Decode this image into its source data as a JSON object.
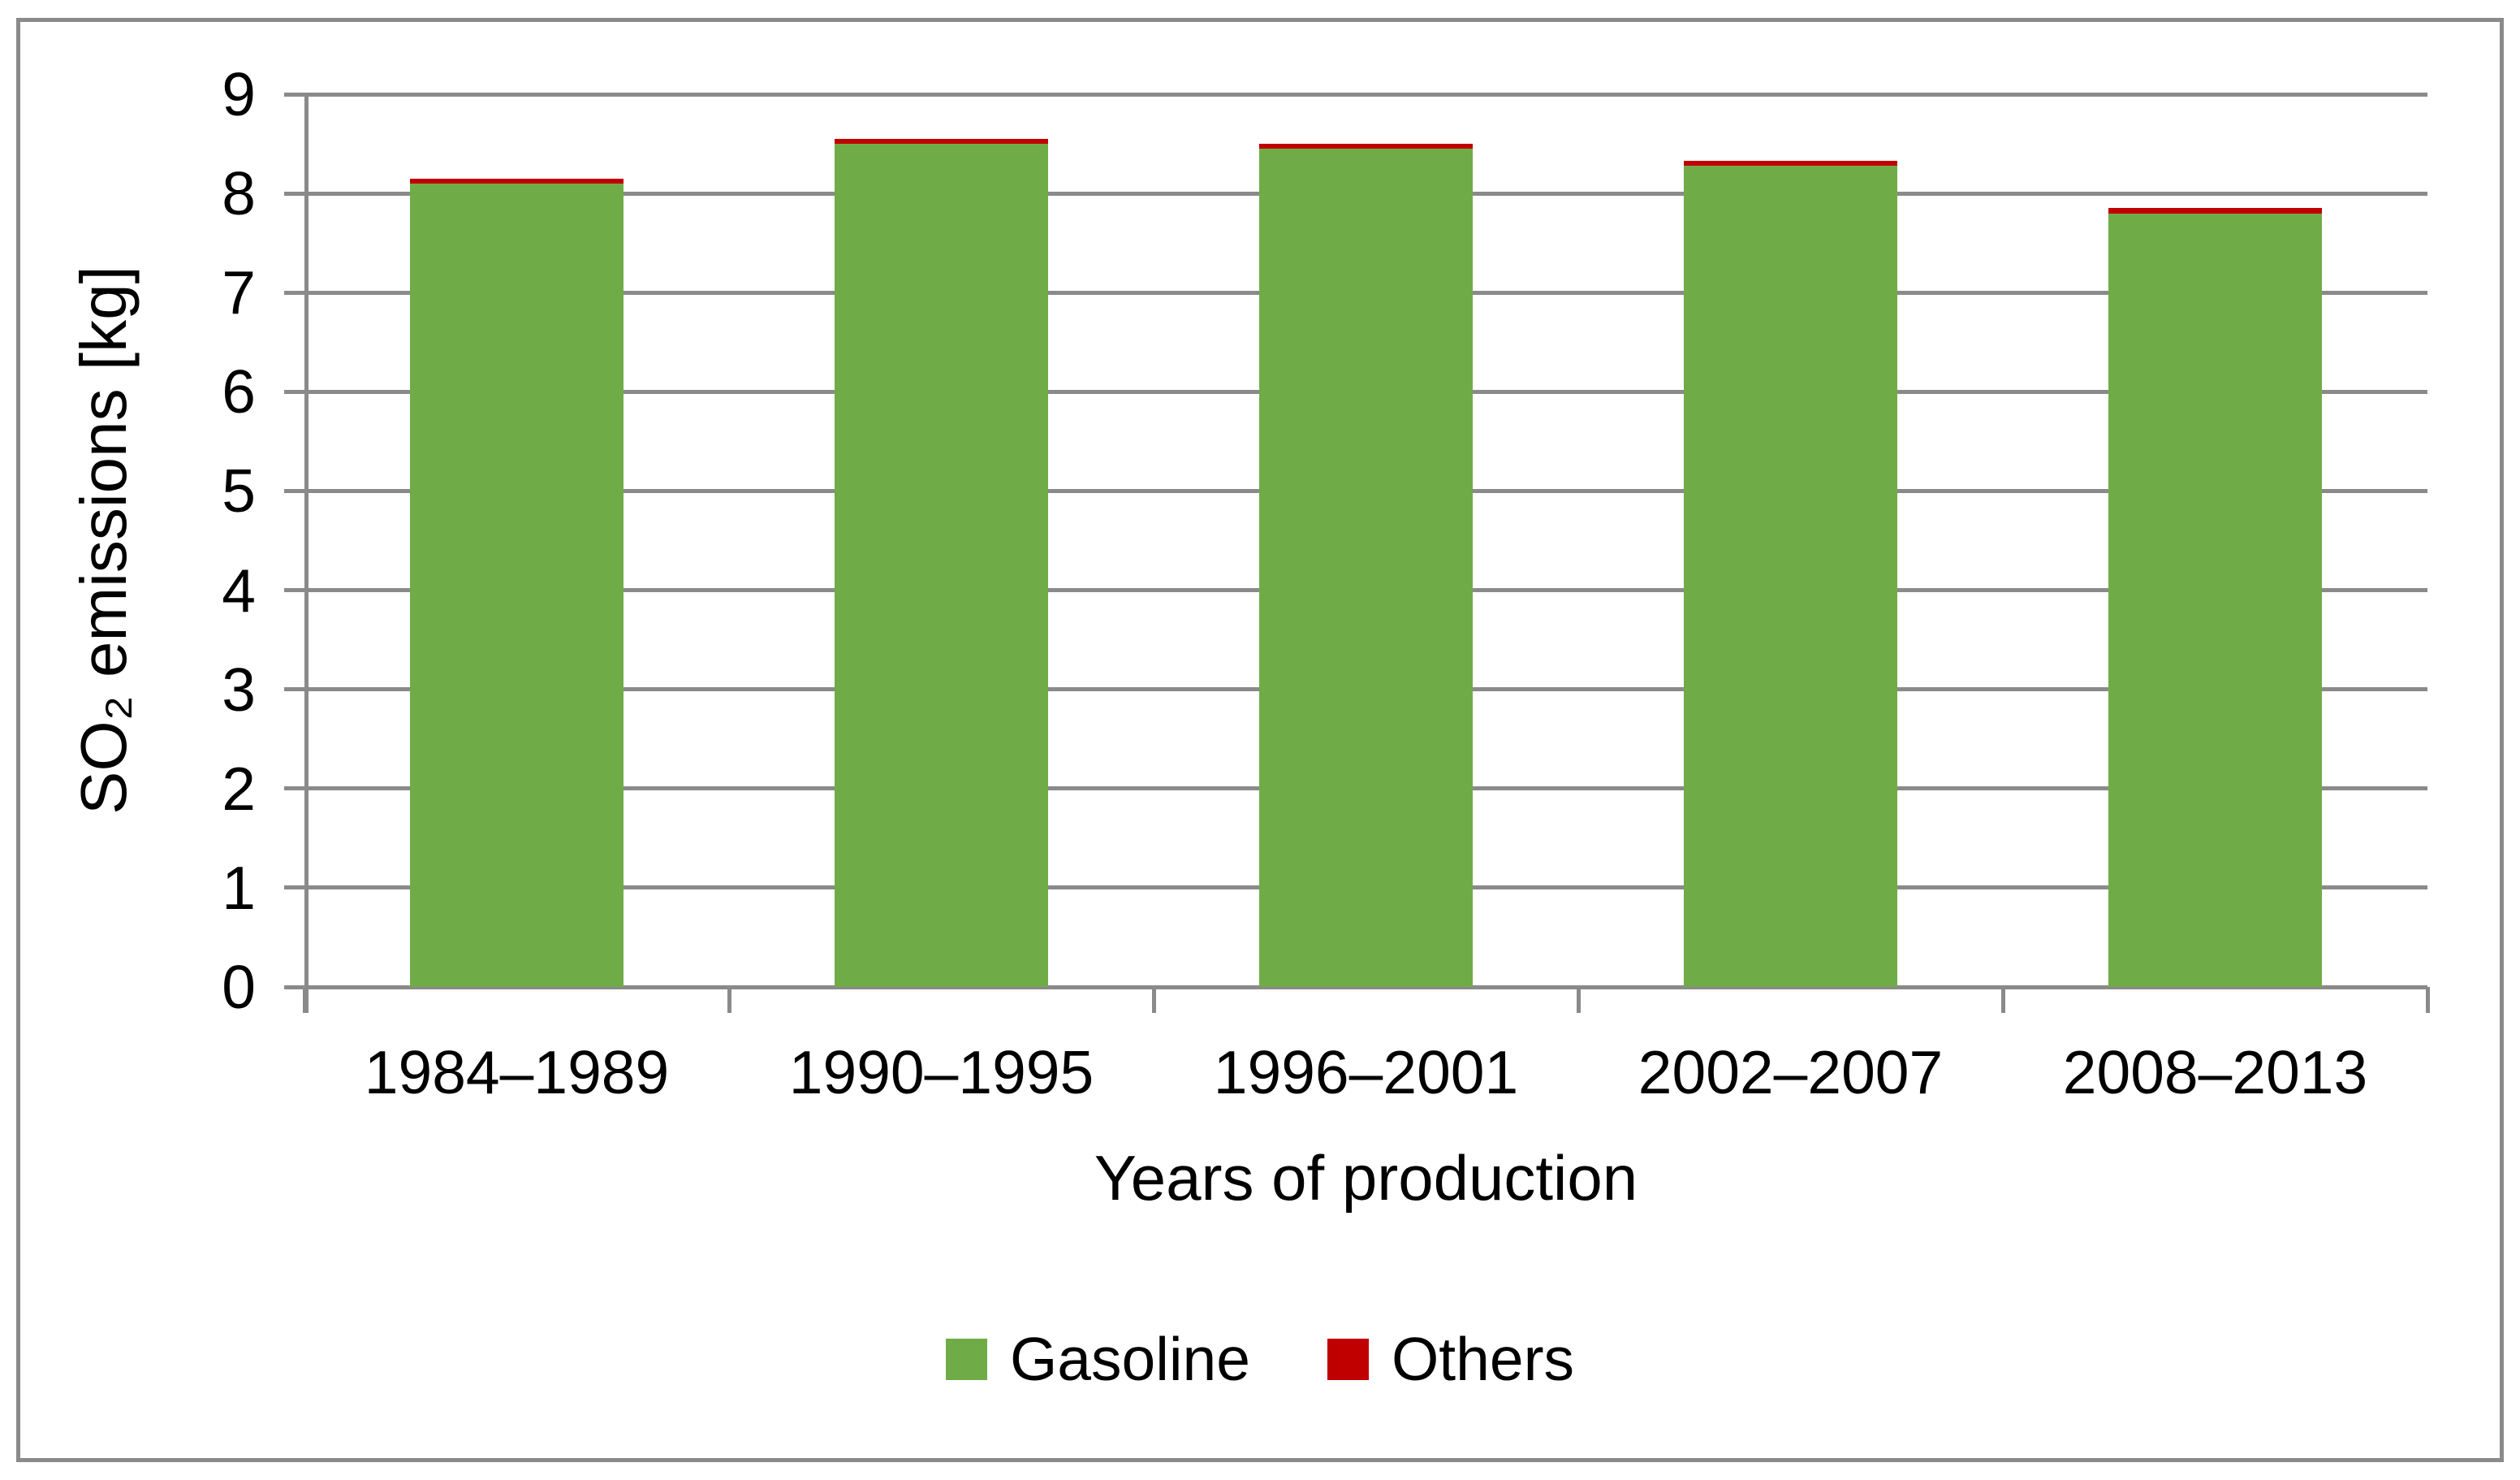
{
  "chart_data": {
    "type": "bar",
    "stacked": true,
    "categories": [
      "1984–1989",
      "1990–1995",
      "1996–2001",
      "2002–2007",
      "2008–2013"
    ],
    "series": [
      {
        "name": "Gasoline",
        "color": "#6FAC48",
        "values": [
          8.1,
          8.5,
          8.45,
          8.28,
          7.8
        ]
      },
      {
        "name": "Others",
        "color": "#C00000",
        "values": [
          0.05,
          0.05,
          0.05,
          0.05,
          0.05
        ]
      }
    ],
    "totals": [
      8.15,
      8.55,
      8.5,
      8.33,
      7.85
    ],
    "xlabel": "Years of production",
    "ylabel": "SO₂ emissions [kg]",
    "ylim": [
      0,
      9
    ],
    "yticks": [
      0,
      1,
      2,
      3,
      4,
      5,
      6,
      7,
      8,
      9
    ],
    "grid": true,
    "legend_position": "bottom"
  },
  "colors": {
    "gridline": "#8a8a8a",
    "axis": "#8a8a8a",
    "frame_border": "#8a8a8a",
    "background": "#ffffff",
    "text": "#000000",
    "gasoline": "#6FAC48",
    "others": "#C00000"
  }
}
